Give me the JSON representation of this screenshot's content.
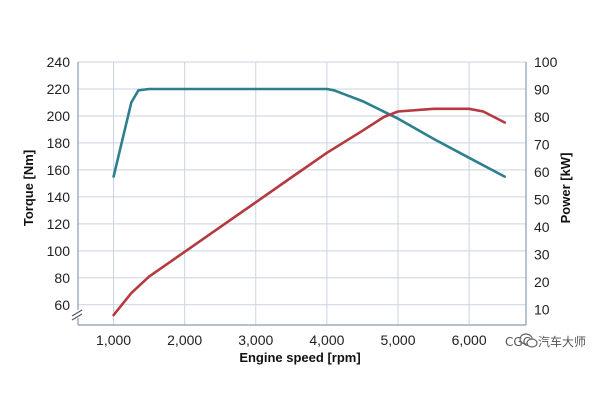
{
  "chart_data": {
    "type": "line",
    "xlabel": "Engine speed [rpm]",
    "ylabel_left": "Torque [Nm]",
    "ylabel_right": "Power [kW]",
    "x_ticks": [
      "1,000",
      "2,000",
      "3,000",
      "4,000",
      "5,000",
      "6,000"
    ],
    "x_tick_values": [
      1000,
      2000,
      3000,
      4000,
      5000,
      6000
    ],
    "y_left_ticks": [
      "60",
      "80",
      "100",
      "120",
      "140",
      "160",
      "180",
      "200",
      "220",
      "240"
    ],
    "y_left_tick_values": [
      60,
      80,
      100,
      120,
      140,
      160,
      180,
      200,
      220,
      240
    ],
    "y_right_ticks": [
      "10",
      "20",
      "30",
      "40",
      "50",
      "60",
      "70",
      "80",
      "90",
      "100"
    ],
    "y_right_tick_values": [
      10,
      20,
      30,
      40,
      50,
      60,
      70,
      80,
      90,
      100
    ],
    "xlim": [
      500,
      6800
    ],
    "ylim_left": [
      45,
      240
    ],
    "ylim_right": [
      4.4,
      100
    ],
    "grid": true,
    "axis_break": true,
    "series": [
      {
        "axis": "left",
        "color": "#2e7f8e",
        "x": [
          1000,
          1250,
          1350,
          1500,
          2000,
          3000,
          4000,
          4100,
          4300,
          4500,
          5000,
          5500,
          6000,
          6500
        ],
        "values": [
          155,
          210,
          219,
          220,
          220,
          220,
          220,
          219,
          215,
          211,
          198,
          183,
          169,
          155
        ]
      },
      {
        "axis": "right",
        "color": "#b43a3f",
        "x": [
          1000,
          1250,
          1500,
          2000,
          2500,
          3000,
          3500,
          4000,
          4500,
          4800,
          5000,
          5500,
          6000,
          6200,
          6500
        ],
        "values": [
          8,
          16,
          22,
          31,
          40,
          49,
          58,
          67,
          75,
          80,
          82,
          83,
          83,
          82,
          78
        ]
      }
    ]
  },
  "watermark": {
    "icon": "wechat-icon",
    "partial_text": "CGC",
    "text": "汽车大师"
  }
}
